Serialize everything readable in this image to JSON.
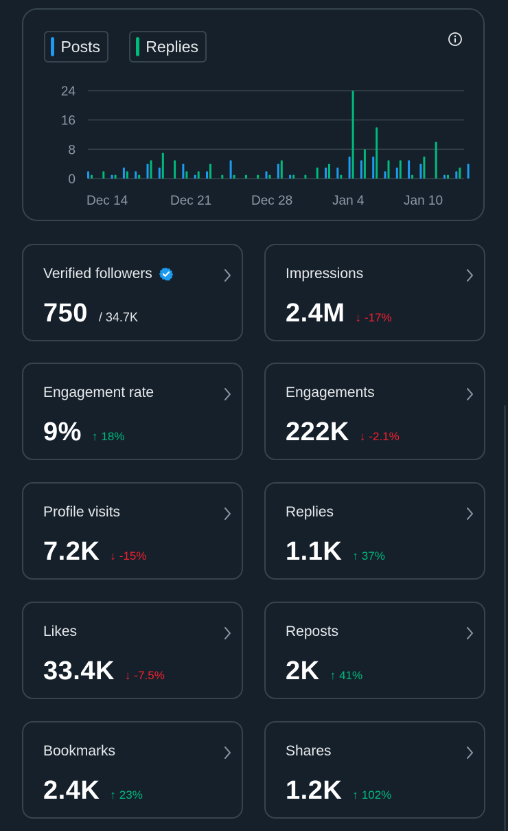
{
  "chart_card": {
    "legend": [
      {
        "label": "Posts",
        "color": "#1d9bf0"
      },
      {
        "label": "Replies",
        "color": "#00ba7c"
      }
    ],
    "info_icon": "info-circle-icon"
  },
  "chart_data": {
    "type": "bar",
    "title": "",
    "xlabel": "",
    "ylabel": "",
    "ylim": [
      0,
      24
    ],
    "yticks": [
      "24",
      "16",
      "8",
      "0"
    ],
    "xtick_labels": [
      "Dec 14",
      "Dec 21",
      "Dec 28",
      "Jan 4",
      "Jan 10"
    ],
    "categories": [
      "Dec 14",
      "Dec 15",
      "Dec 16",
      "Dec 17",
      "Dec 18",
      "Dec 19",
      "Dec 20",
      "Dec 21",
      "Dec 22",
      "Dec 23",
      "Dec 24",
      "Dec 25",
      "Dec 26",
      "Dec 27",
      "Dec 28",
      "Dec 29",
      "Dec 30",
      "Dec 31",
      "Jan 1",
      "Jan 2",
      "Jan 3",
      "Jan 4",
      "Jan 5",
      "Jan 6",
      "Jan 7",
      "Jan 8",
      "Jan 9",
      "Jan 10",
      "Jan 11",
      "Jan 12",
      "Jan 13",
      "Jan 14",
      "Jan 15"
    ],
    "series": [
      {
        "name": "Posts",
        "color": "#1d9bf0",
        "values": [
          2,
          0,
          1,
          3,
          2,
          4,
          3,
          0,
          4,
          1,
          2,
          0,
          5,
          0,
          0,
          2,
          4,
          1,
          0,
          0,
          3,
          3,
          6,
          5,
          6,
          2,
          3,
          5,
          4,
          0,
          1,
          2,
          4
        ]
      },
      {
        "name": "Replies",
        "color": "#00ba7c",
        "values": [
          1,
          2,
          1,
          2,
          1,
          5,
          7,
          5,
          2,
          2,
          4,
          1,
          1,
          1,
          1,
          1,
          5,
          1,
          1,
          3,
          4,
          1,
          24,
          8,
          14,
          5,
          5,
          1,
          6,
          10,
          1,
          3,
          0
        ]
      }
    ]
  },
  "stats": [
    {
      "label": "Verified followers",
      "value": "750",
      "sub": "/ 34.7K",
      "verified": true
    },
    {
      "label": "Impressions",
      "value": "2.4M",
      "delta": "-17%",
      "direction": "down"
    },
    {
      "label": "Engagement rate",
      "value": "9%",
      "delta": "18%",
      "direction": "up"
    },
    {
      "label": "Engagements",
      "value": "222K",
      "delta": "-2.1%",
      "direction": "down"
    },
    {
      "label": "Profile visits",
      "value": "7.2K",
      "delta": "-15%",
      "direction": "down"
    },
    {
      "label": "Replies",
      "value": "1.1K",
      "delta": "37%",
      "direction": "up"
    },
    {
      "label": "Likes",
      "value": "33.4K",
      "delta": "-7.5%",
      "direction": "down"
    },
    {
      "label": "Reposts",
      "value": "2K",
      "delta": "41%",
      "direction": "up"
    },
    {
      "label": "Bookmarks",
      "value": "2.4K",
      "delta": "23%",
      "direction": "up"
    },
    {
      "label": "Shares",
      "value": "1.2K",
      "delta": "102%",
      "direction": "up"
    }
  ],
  "arrows": {
    "up": "↑",
    "down": "↓"
  }
}
